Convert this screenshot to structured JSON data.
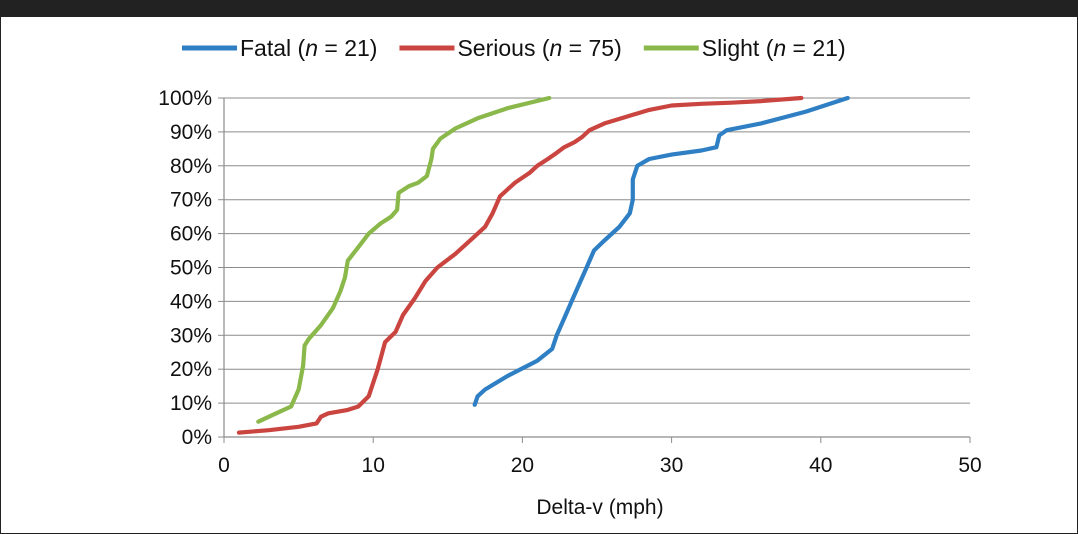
{
  "chart_data": {
    "type": "line",
    "title": "",
    "xlabel": "Delta-v (mph)",
    "ylabel": "",
    "xlim": [
      0,
      50
    ],
    "ylim": [
      0,
      100
    ],
    "x_ticks": [
      "0",
      "10",
      "20",
      "30",
      "40",
      "50"
    ],
    "y_ticks": [
      "0%",
      "10%",
      "20%",
      "30%",
      "40%",
      "50%",
      "60%",
      "70%",
      "80%",
      "90%",
      "100%"
    ],
    "grid": "horizontal",
    "legend_placement": "top",
    "series": [
      {
        "name": "Fatal",
        "n_label": "n",
        "n_eq": " = 21",
        "color": "#2f7fc4",
        "points": [
          [
            16.8,
            9.5
          ],
          [
            17,
            12
          ],
          [
            17.5,
            14
          ],
          [
            19,
            18
          ],
          [
            21,
            22.5
          ],
          [
            22,
            26
          ],
          [
            22.3,
            30
          ],
          [
            22.8,
            35
          ],
          [
            23.3,
            40
          ],
          [
            23.8,
            45
          ],
          [
            24.3,
            50
          ],
          [
            24.8,
            55
          ],
          [
            25.5,
            58
          ],
          [
            26.5,
            62
          ],
          [
            27.2,
            66
          ],
          [
            27.4,
            70
          ],
          [
            27.4,
            76
          ],
          [
            27.7,
            80
          ],
          [
            28.5,
            82
          ],
          [
            30,
            83.3
          ],
          [
            32,
            84.5
          ],
          [
            33,
            85.5
          ],
          [
            33.2,
            89
          ],
          [
            33.7,
            90.5
          ],
          [
            36,
            92.5
          ],
          [
            39,
            96
          ],
          [
            41.8,
            100
          ]
        ]
      },
      {
        "name": "Serious",
        "n_label": "n",
        "n_eq": " = 75",
        "color": "#cb4540",
        "points": [
          [
            1,
            1.3
          ],
          [
            3,
            2
          ],
          [
            5,
            3
          ],
          [
            6.2,
            4
          ],
          [
            6.5,
            6
          ],
          [
            7,
            7
          ],
          [
            8.3,
            8
          ],
          [
            9,
            9
          ],
          [
            9.7,
            12
          ],
          [
            10.3,
            20
          ],
          [
            10.8,
            28
          ],
          [
            11.5,
            31
          ],
          [
            12,
            36
          ],
          [
            12.8,
            41
          ],
          [
            13.5,
            46
          ],
          [
            14.3,
            50
          ],
          [
            15.5,
            54
          ],
          [
            16.5,
            58
          ],
          [
            17.5,
            62
          ],
          [
            18,
            66
          ],
          [
            18.5,
            71
          ],
          [
            19,
            73
          ],
          [
            19.5,
            75
          ],
          [
            20,
            76.5
          ],
          [
            20.5,
            78
          ],
          [
            21,
            80
          ],
          [
            21.7,
            82
          ],
          [
            22.2,
            83.5
          ],
          [
            22.8,
            85.5
          ],
          [
            23.5,
            87
          ],
          [
            24,
            88.5
          ],
          [
            24.5,
            90.5
          ],
          [
            25.5,
            92.5
          ],
          [
            27,
            94.5
          ],
          [
            28.5,
            96.5
          ],
          [
            30,
            97.8
          ],
          [
            32,
            98.3
          ],
          [
            34,
            98.6
          ],
          [
            36,
            99.1
          ],
          [
            38.7,
            100
          ]
        ]
      },
      {
        "name": "Slight",
        "n_label": "n",
        "n_eq": " = 21",
        "color": "#8ab84a",
        "points": [
          [
            2.3,
            4.5
          ],
          [
            3.5,
            7
          ],
          [
            4.5,
            9
          ],
          [
            5,
            14
          ],
          [
            5.3,
            21
          ],
          [
            5.4,
            27
          ],
          [
            5.7,
            29
          ],
          [
            6.5,
            33
          ],
          [
            7.3,
            38
          ],
          [
            7.8,
            43
          ],
          [
            8.1,
            47
          ],
          [
            8.3,
            52
          ],
          [
            9,
            56
          ],
          [
            9.7,
            60
          ],
          [
            10.5,
            63
          ],
          [
            11.2,
            65
          ],
          [
            11.6,
            67
          ],
          [
            11.7,
            72
          ],
          [
            12.4,
            74
          ],
          [
            13,
            75
          ],
          [
            13.6,
            77
          ],
          [
            13.9,
            82
          ],
          [
            14,
            85
          ],
          [
            14.5,
            88
          ],
          [
            15.5,
            91
          ],
          [
            17,
            94
          ],
          [
            19,
            97
          ],
          [
            21.8,
            100
          ]
        ]
      }
    ]
  }
}
